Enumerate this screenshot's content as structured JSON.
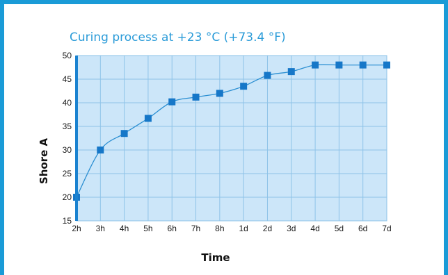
{
  "chart_data": {
    "type": "line",
    "title": "Curing process at +23 °C (+73.4 °F)",
    "xlabel": "Time",
    "ylabel": "Shore A",
    "categories": [
      "2h",
      "3h",
      "4h",
      "5h",
      "6h",
      "7h",
      "8h",
      "1d",
      "2d",
      "3d",
      "4d",
      "5d",
      "6d",
      "7d"
    ],
    "values": [
      20,
      30,
      33.5,
      36.7,
      40.2,
      41.2,
      42,
      43.5,
      45.8,
      46.6,
      48,
      48,
      48,
      48
    ],
    "ylim": [
      15,
      50
    ],
    "yticks": [
      15,
      20,
      25,
      30,
      35,
      40,
      45,
      50
    ],
    "grid": true,
    "legend": "none",
    "colors": {
      "plot_background": "#cce6f9",
      "grid": "#8ec3e8",
      "line": "#2b8fd2",
      "marker": "#1677c8",
      "y_axis": "#1a82d0",
      "frame": "#1a9bd7"
    }
  }
}
